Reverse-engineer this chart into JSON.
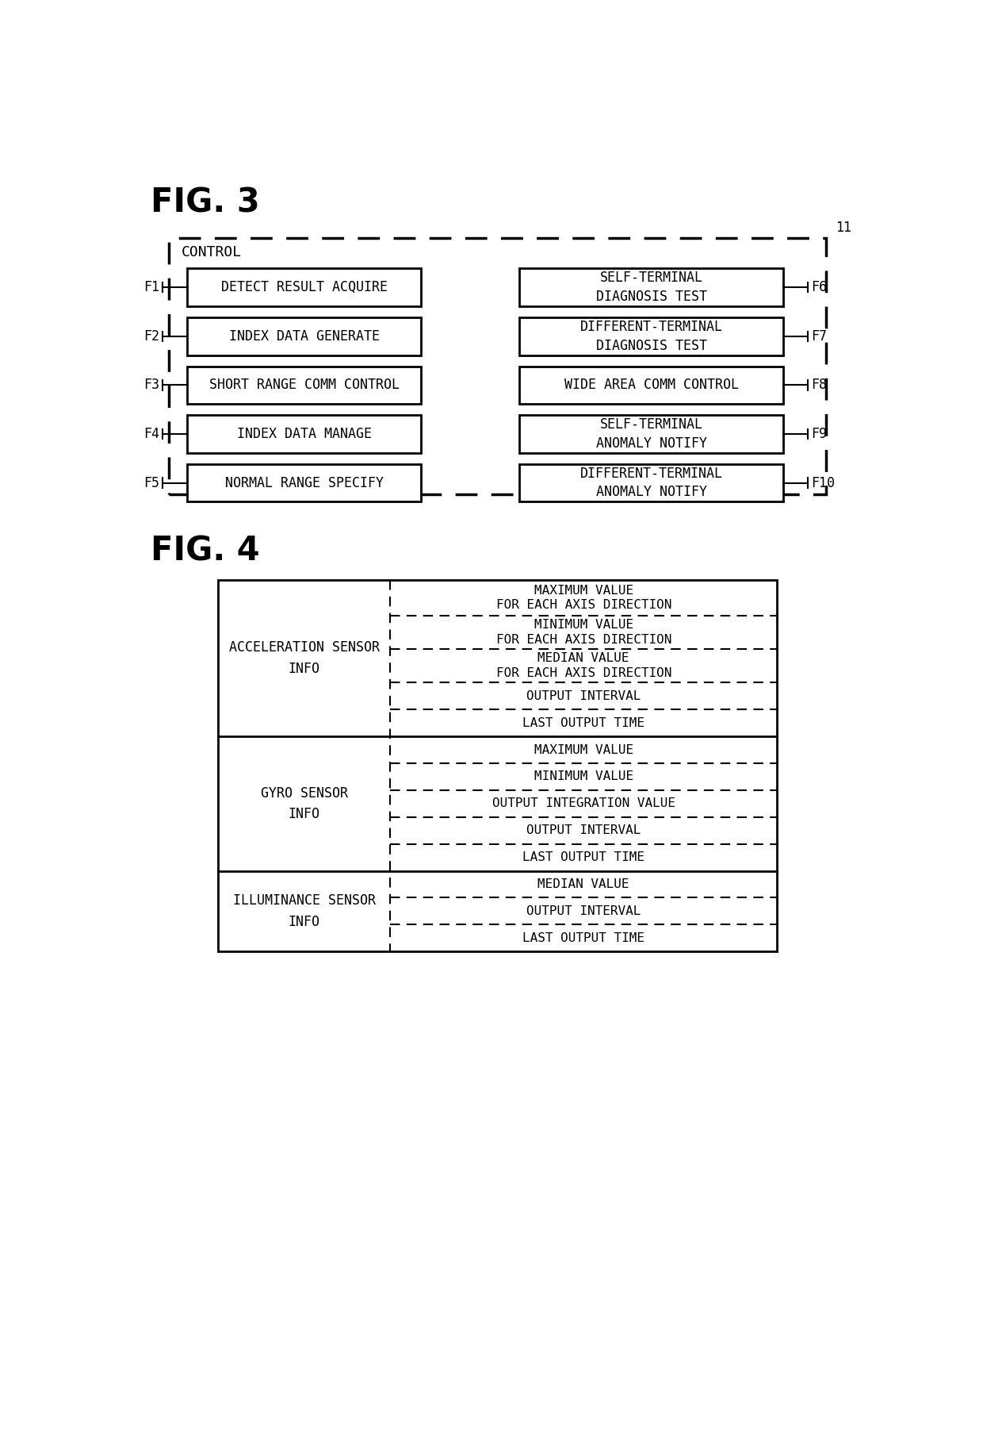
{
  "fig_title1": "FIG. 3",
  "fig_title2": "FIG. 4",
  "background_color": "#ffffff",
  "fig3": {
    "outer_label": "11",
    "control_label": "CONTROL",
    "left_boxes": [
      {
        "label": "F1",
        "text": "DETECT RESULT ACQUIRE"
      },
      {
        "label": "F2",
        "text": "INDEX DATA GENERATE"
      },
      {
        "label": "F3",
        "text": "SHORT RANGE COMM CONTROL"
      },
      {
        "label": "F4",
        "text": "INDEX DATA MANAGE"
      },
      {
        "label": "F5",
        "text": "NORMAL RANGE SPECIFY"
      }
    ],
    "right_boxes": [
      {
        "label": "F6",
        "text": "SELF-TERMINAL\nDIAGNOSIS TEST"
      },
      {
        "label": "F7",
        "text": "DIFFERENT-TERMINAL\nDIAGNOSIS TEST"
      },
      {
        "label": "F8",
        "text": "WIDE AREA COMM CONTROL"
      },
      {
        "label": "F9",
        "text": "SELF-TERMINAL\nANOMALY NOTIFY"
      },
      {
        "label": "F10",
        "text": "DIFFERENT-TERMINAL\nANOMALY NOTIFY"
      }
    ]
  },
  "fig4": {
    "rows": [
      {
        "left_label": "ACCELERATION SENSOR\nINFO",
        "right_items": [
          {
            "text": "MAXIMUM VALUE\nFOR EACH AXIS DIRECTION"
          },
          {
            "text": "MINIMUM VALUE\nFOR EACH AXIS DIRECTION"
          },
          {
            "text": "MEDIAN VALUE\nFOR EACH AXIS DIRECTION"
          },
          {
            "text": "OUTPUT INTERVAL"
          },
          {
            "text": "LAST OUTPUT TIME"
          }
        ]
      },
      {
        "left_label": "GYRO SENSOR\nINFO",
        "right_items": [
          {
            "text": "MAXIMUM VALUE"
          },
          {
            "text": "MINIMUM VALUE"
          },
          {
            "text": "OUTPUT INTEGRATION VALUE"
          },
          {
            "text": "OUTPUT INTERVAL"
          },
          {
            "text": "LAST OUTPUT TIME"
          }
        ]
      },
      {
        "left_label": "ILLUMINANCE SENSOR\nINFO",
        "right_items": [
          {
            "text": "MEDIAN VALUE"
          },
          {
            "text": "OUTPUT INTERVAL"
          },
          {
            "text": "LAST OUTPUT TIME"
          }
        ]
      }
    ]
  }
}
